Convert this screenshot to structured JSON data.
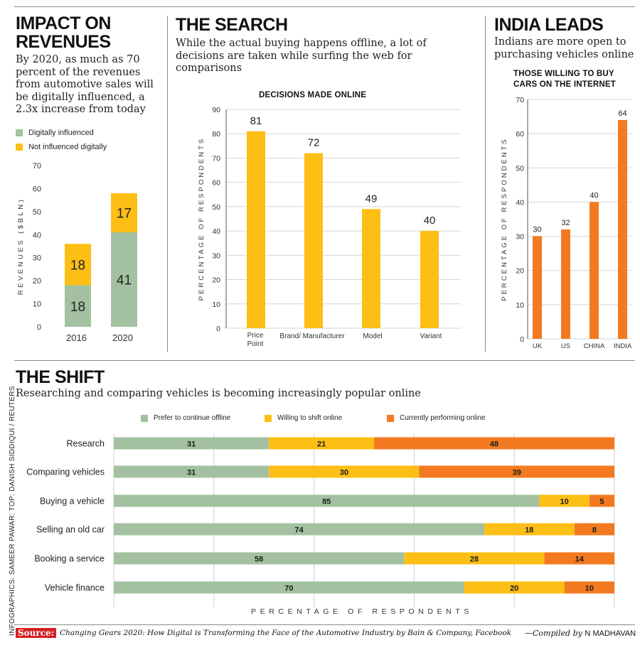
{
  "colors": {
    "green": "#a3c1a0",
    "yellow": "#fdbf16",
    "orange": "#f37a20",
    "axis_text": "#333333"
  },
  "panel1": {
    "title_line1": "IMPACT ON",
    "title_line2": "REVENUES",
    "subtitle": "By 2020, as much as 70 percent of the revenues from automotive sales will be digitally influenced, a 2.3x increase from today",
    "legend": [
      "Digitally influenced",
      "Not influenced digitally"
    ]
  },
  "panel2": {
    "title": "THE SEARCH",
    "subtitle": "While the actual buying happens offline, a lot of decisions are taken while surfing the web for comparisons"
  },
  "panel3": {
    "title": "INDIA LEADS",
    "subtitle": "Indians are more open to purchasing vehicles online"
  },
  "panel4": {
    "title": "THE SHIFT",
    "subtitle": "Researching and comparing vehicles is becoming increasingly popular online"
  },
  "chart_data": [
    {
      "type": "bar",
      "stacked": true,
      "title": "",
      "categories": [
        "2016",
        "2020"
      ],
      "series": [
        {
          "name": "Digitally influenced",
          "values": [
            18,
            41
          ]
        },
        {
          "name": "Not influenced digitally",
          "values": [
            18,
            17
          ]
        }
      ],
      "xlabel": "",
      "ylabel": "REVENUES ($BLN)",
      "ylim": [
        0,
        70
      ],
      "yticks": [
        0,
        10,
        20,
        30,
        40,
        50,
        60,
        70
      ]
    },
    {
      "type": "bar",
      "title": "DECISIONS MADE ONLINE",
      "categories": [
        "Price Point",
        "Brand/ Manufacturer",
        "Model",
        "Variant"
      ],
      "values": [
        81,
        72,
        49,
        40
      ],
      "xlabel": "",
      "ylabel": "PERCENTAGE OF RESPONDENTS",
      "ylim": [
        0,
        90
      ],
      "yticks": [
        0,
        10,
        20,
        30,
        40,
        50,
        60,
        70,
        80,
        90
      ]
    },
    {
      "type": "bar",
      "title": "THOSE WILLING TO BUY CARS ON THE INTERNET",
      "categories": [
        "UK",
        "US",
        "CHINA",
        "INDIA"
      ],
      "values": [
        30,
        32,
        40,
        64
      ],
      "xlabel": "",
      "ylabel": "PERCENTAGE OF RESPONDENTS",
      "ylim": [
        0,
        70
      ],
      "yticks": [
        0,
        10,
        20,
        30,
        40,
        50,
        60,
        70
      ]
    },
    {
      "type": "bar",
      "orientation": "horizontal",
      "stacked": true,
      "title": "",
      "categories": [
        "Research",
        "Comparing vehicles",
        "Buying a vehicle",
        "Selling an old car",
        "Booking a service",
        "Vehicle finance"
      ],
      "series": [
        {
          "name": "Prefer to continue offline",
          "values": [
            31,
            31,
            85,
            74,
            58,
            70
          ]
        },
        {
          "name": "Willing to shift online",
          "values": [
            21,
            30,
            10,
            18,
            28,
            20
          ]
        },
        {
          "name": "Currently performing online",
          "values": [
            48,
            39,
            5,
            8,
            14,
            10
          ]
        }
      ],
      "xlabel": "PERCENTAGE OF RESPONDENTS",
      "ylabel": "",
      "xlim": [
        0,
        100
      ]
    }
  ],
  "footer": {
    "source_label": "Source:",
    "source_text": "Changing Gears 2020: How Digital is Transforming the Face of the Automotive Industry by Bain & Company, Facebook",
    "compiled_prefix": "—Compiled by",
    "compiled_name": "N MADHAVAN",
    "side_credit": "INFOGRAPHICS: SAMEER PAWAR; TOP: DANISH SIDDIQUI / REUTERS"
  }
}
